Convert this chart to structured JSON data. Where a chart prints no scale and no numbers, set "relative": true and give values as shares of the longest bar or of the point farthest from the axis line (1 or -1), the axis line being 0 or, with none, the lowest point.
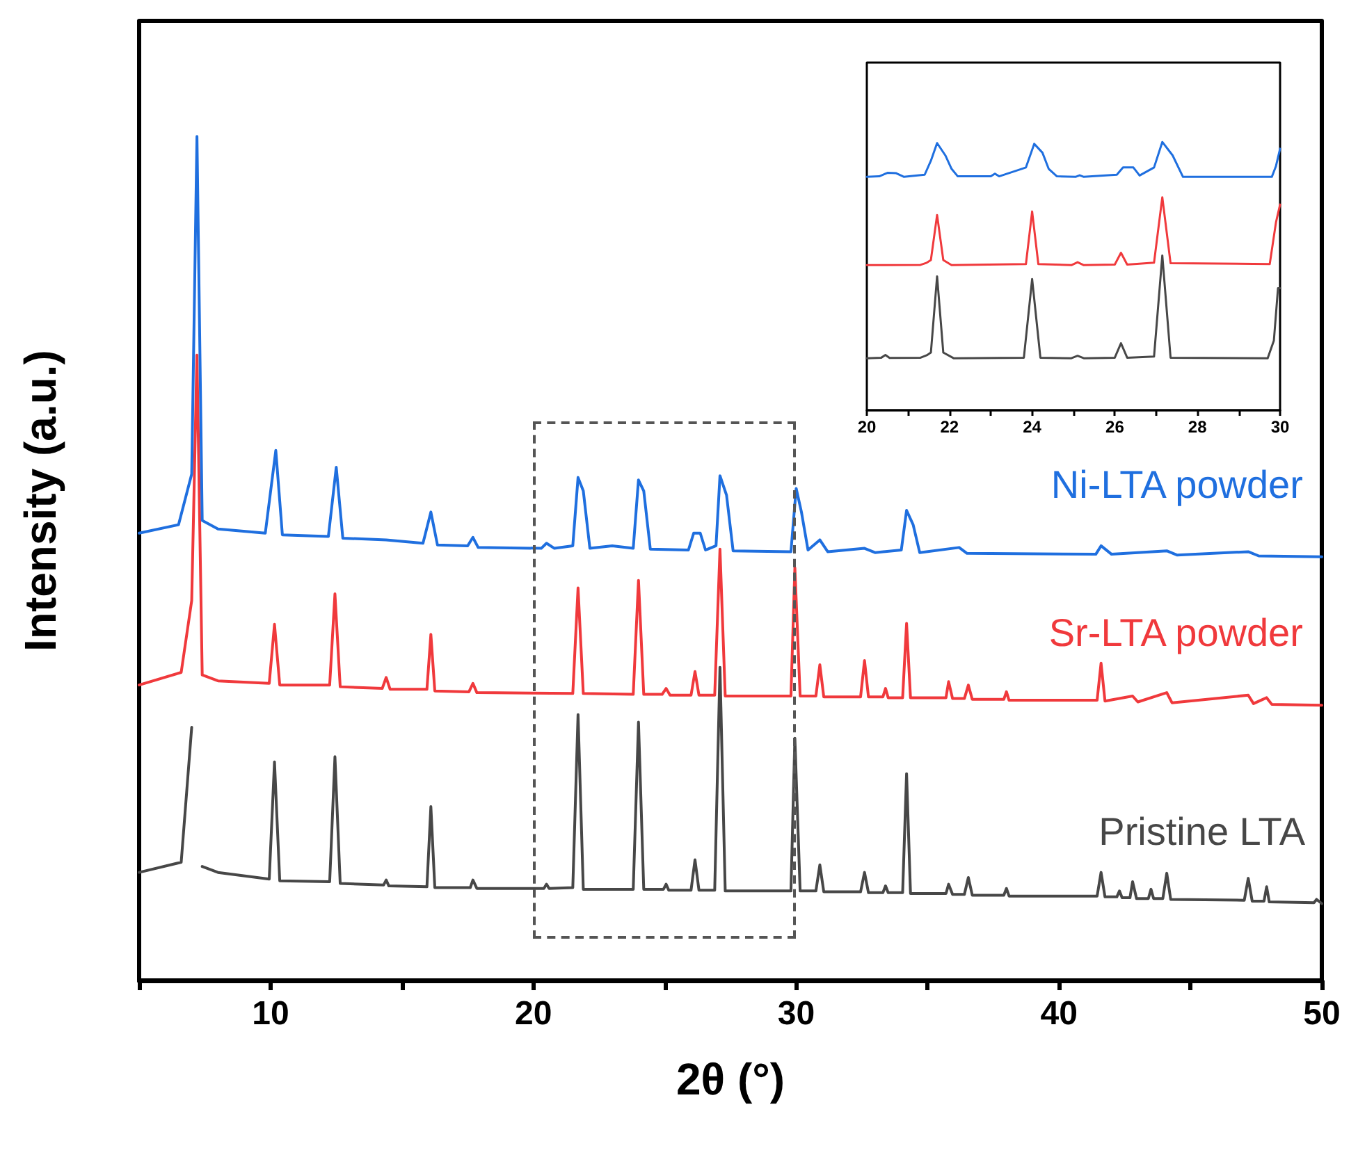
{
  "chart_data": [
    {
      "type": "line",
      "relative": true,
      "xlabel": "2θ (°)",
      "ylabel": "Intensity (a.u.)",
      "xlim": [
        5,
        50
      ],
      "xticks": [
        {
          "value": 5,
          "label": null
        },
        10,
        {
          "value": 15,
          "label": null
        },
        20,
        {
          "value": 25,
          "label": null
        },
        30,
        {
          "value": 35,
          "label": null
        },
        40,
        {
          "value": 45,
          "label": null
        },
        50
      ],
      "tick_labels": "x",
      "grid": false,
      "legend": false,
      "marker": "none",
      "line_style": "solid",
      "series": [
        {
          "name": "Pristine LTA",
          "color": "#474747",
          "x": [
            5,
            6.6,
            7.0,
            7.2,
            7.4,
            8,
            9.95,
            10.15,
            10.35,
            12.25,
            12.45,
            12.65,
            14.3,
            14.4,
            14.5,
            15.95,
            16.1,
            16.25,
            17.6,
            17.7,
            17.85,
            20.4,
            20.5,
            20.6,
            21.5,
            21.7,
            21.9,
            23.8,
            24.0,
            24.2,
            24.95,
            25.05,
            25.15,
            26.0,
            26.15,
            26.3,
            26.9,
            27.1,
            27.3,
            29.8,
            29.95,
            30.15,
            30.75,
            30.9,
            31.05,
            32.45,
            32.6,
            32.75,
            33.3,
            33.4,
            33.5,
            34.05,
            34.2,
            34.35,
            35.7,
            35.8,
            35.95,
            36.4,
            36.55,
            36.7,
            37.9,
            38.0,
            38.1,
            41.45,
            41.6,
            41.75,
            42.2,
            42.3,
            42.4,
            42.7,
            42.8,
            42.95,
            43.4,
            43.5,
            43.6,
            43.95,
            44.1,
            44.25,
            47.05,
            47.2,
            47.35,
            47.8,
            47.9,
            48.0,
            49.7,
            49.8,
            50
          ],
          "values": [
            0.128,
            0.14,
            0.3,
            null,
            0.135,
            0.128,
            0.12,
            0.259,
            0.118,
            0.117,
            0.265,
            0.115,
            0.113,
            0.119,
            0.112,
            0.111,
            0.206,
            0.11,
            0.11,
            0.119,
            0.109,
            0.109,
            0.114,
            0.109,
            0.11,
            0.315,
            0.108,
            0.108,
            0.306,
            0.108,
            0.108,
            0.114,
            0.107,
            0.107,
            0.143,
            0.107,
            0.107,
            0.371,
            0.106,
            0.106,
            0.287,
            0.106,
            0.106,
            0.137,
            0.105,
            0.105,
            0.128,
            0.104,
            0.104,
            0.112,
            0.104,
            0.104,
            0.245,
            0.103,
            0.103,
            0.114,
            0.102,
            0.102,
            0.122,
            0.101,
            0.101,
            0.109,
            0.1,
            0.1,
            0.128,
            0.099,
            0.099,
            0.106,
            0.098,
            0.098,
            0.117,
            0.097,
            0.097,
            0.108,
            0.097,
            0.097,
            0.127,
            0.096,
            0.095,
            0.121,
            0.094,
            0.094,
            0.111,
            0.093,
            0.092,
            0.096,
            0.091
          ]
        },
        {
          "name": "Sr-LTA powder",
          "color": "#f0393c",
          "x": [
            5,
            6.6,
            7.0,
            7.2,
            7.4,
            8,
            9.95,
            10.15,
            10.35,
            12.25,
            12.45,
            12.65,
            14.25,
            14.4,
            14.55,
            15.95,
            16.1,
            16.25,
            17.55,
            17.7,
            17.85,
            21.5,
            21.7,
            21.9,
            23.8,
            24.0,
            24.2,
            24.9,
            25.05,
            25.2,
            26.0,
            26.15,
            26.3,
            26.9,
            27.1,
            27.3,
            29.8,
            29.95,
            30.15,
            30.75,
            30.9,
            31.05,
            32.45,
            32.6,
            32.75,
            33.3,
            33.4,
            33.5,
            34.05,
            34.2,
            34.35,
            35.7,
            35.8,
            35.95,
            36.4,
            36.55,
            36.7,
            37.9,
            38.0,
            38.1,
            41.45,
            41.6,
            41.75,
            42.8,
            43.0,
            44.1,
            44.3,
            47.2,
            47.4,
            47.9,
            48.1,
            50
          ],
          "values": [
            0.35,
            0.365,
            0.45,
            0.741,
            0.362,
            0.355,
            0.352,
            0.422,
            0.35,
            0.35,
            0.458,
            0.348,
            0.346,
            0.359,
            0.345,
            0.345,
            0.41,
            0.343,
            0.342,
            0.352,
            0.341,
            0.34,
            0.465,
            0.34,
            0.339,
            0.474,
            0.339,
            0.339,
            0.346,
            0.338,
            0.338,
            0.366,
            0.338,
            0.338,
            0.511,
            0.337,
            0.337,
            0.489,
            0.337,
            0.337,
            0.374,
            0.336,
            0.336,
            0.379,
            0.336,
            0.336,
            0.346,
            0.335,
            0.335,
            0.423,
            0.335,
            0.335,
            0.354,
            0.334,
            0.334,
            0.35,
            0.333,
            0.333,
            0.342,
            0.332,
            0.332,
            0.376,
            0.331,
            0.337,
            0.33,
            0.341,
            0.329,
            0.338,
            0.328,
            0.335,
            0.327,
            0.326
          ]
        },
        {
          "name": "Ni-LTA powder",
          "color": "#1f6fdf",
          "x": [
            5,
            6.5,
            7.0,
            7.2,
            7.4,
            8,
            9.8,
            10.2,
            10.45,
            12.2,
            12.5,
            12.75,
            14.4,
            15.8,
            16.1,
            16.35,
            17.5,
            17.7,
            17.9,
            20.3,
            20.5,
            20.8,
            21.5,
            21.7,
            21.9,
            22.15,
            23.0,
            23.8,
            24.0,
            24.2,
            24.45,
            25.9,
            26.1,
            26.35,
            26.55,
            26.95,
            27.1,
            27.35,
            27.6,
            29.8,
            30.0,
            30.2,
            30.45,
            30.9,
            31.2,
            32.6,
            33.0,
            34.0,
            34.2,
            34.45,
            34.7,
            36.2,
            36.5,
            41.4,
            41.6,
            42.0,
            44.1,
            44.5,
            47.2,
            47.6,
            50
          ],
          "values": [
            0.53,
            0.54,
            0.6,
            1.0,
            0.545,
            0.535,
            0.53,
            0.628,
            0.528,
            0.526,
            0.608,
            0.524,
            0.522,
            0.518,
            0.555,
            0.516,
            0.515,
            0.525,
            0.513,
            0.512,
            0.518,
            0.512,
            0.515,
            0.596,
            0.58,
            0.512,
            0.515,
            0.512,
            0.593,
            0.58,
            0.511,
            0.51,
            0.53,
            0.53,
            0.51,
            0.515,
            0.598,
            0.575,
            0.509,
            0.508,
            0.583,
            0.555,
            0.51,
            0.522,
            0.508,
            0.512,
            0.507,
            0.51,
            0.557,
            0.54,
            0.507,
            0.513,
            0.506,
            0.505,
            0.515,
            0.505,
            0.509,
            0.504,
            0.508,
            0.503,
            0.502
          ]
        }
      ]
    },
    {
      "type": "line",
      "relative": true,
      "xlim": [
        20,
        30
      ],
      "xticks": [
        20,
        {
          "value": 21,
          "label": null
        },
        22,
        {
          "value": 23,
          "label": null
        },
        24,
        {
          "value": 25,
          "label": null
        },
        26,
        {
          "value": 27,
          "label": null
        },
        28,
        {
          "value": 29,
          "label": null
        },
        30
      ],
      "tick_labels": "x",
      "grid": false,
      "legend": false,
      "marker": "none",
      "line_style": "solid",
      "series": [
        {
          "color": "#474747",
          "x": [
            20,
            20.35,
            20.45,
            20.55,
            21.3,
            21.45,
            21.55,
            21.7,
            21.85,
            22.1,
            23.8,
            24.0,
            24.2,
            24.95,
            25.1,
            25.25,
            26.0,
            26.15,
            26.3,
            26.95,
            27.15,
            27.35,
            29.7,
            29.85,
            29.95,
            30
          ],
          "values": [
            0.194,
            0.196,
            0.206,
            0.195,
            0.196,
            0.205,
            0.215,
            0.499,
            0.215,
            0.194,
            0.196,
            0.489,
            0.196,
            0.194,
            0.203,
            0.194,
            0.196,
            0.25,
            0.196,
            0.2,
            0.577,
            0.196,
            0.194,
            0.26,
            0.455,
            0.455
          ]
        },
        {
          "color": "#f0393c",
          "x": [
            20,
            21.3,
            21.45,
            21.55,
            21.7,
            21.85,
            22.05,
            23.85,
            24.0,
            24.15,
            24.95,
            25.1,
            25.25,
            26.0,
            26.15,
            26.3,
            26.95,
            27.15,
            27.35,
            29.75,
            29.9,
            30
          ],
          "values": [
            0.541,
            0.542,
            0.55,
            0.56,
            0.728,
            0.56,
            0.541,
            0.545,
            0.741,
            0.545,
            0.541,
            0.552,
            0.541,
            0.543,
            0.587,
            0.543,
            0.55,
            0.794,
            0.548,
            0.545,
            0.7,
            0.767
          ]
        },
        {
          "color": "#1f6fdf",
          "x": [
            20,
            20.3,
            20.5,
            20.7,
            20.9,
            21.4,
            21.55,
            21.7,
            21.9,
            22.05,
            22.2,
            23.0,
            23.1,
            23.2,
            23.85,
            24.05,
            24.25,
            24.4,
            24.6,
            25.05,
            25.15,
            25.25,
            26.05,
            26.2,
            26.45,
            26.6,
            26.95,
            27.15,
            27.4,
            27.65,
            29.8,
            29.9,
            30
          ],
          "values": [
            0.87,
            0.872,
            0.885,
            0.884,
            0.87,
            0.878,
            0.93,
            0.996,
            0.95,
            0.9,
            0.872,
            0.872,
            0.882,
            0.872,
            0.905,
            0.993,
            0.96,
            0.9,
            0.872,
            0.87,
            0.876,
            0.87,
            0.878,
            0.905,
            0.905,
            0.875,
            0.905,
            1.0,
            0.95,
            0.87,
            0.87,
            0.91,
            0.975
          ]
        }
      ]
    }
  ]
}
